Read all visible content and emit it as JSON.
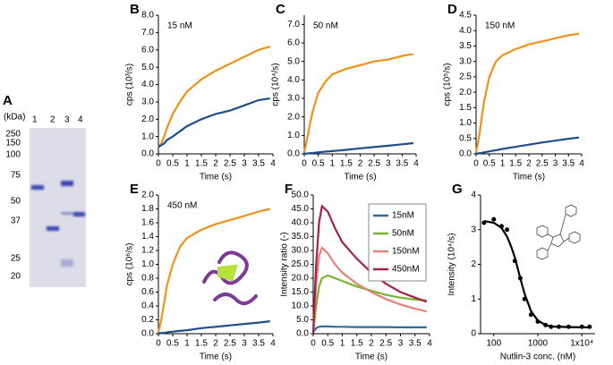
{
  "gel": {
    "panel": "A",
    "unit": "(kDa)",
    "markers": [
      "250",
      "150",
      "100",
      "75",
      "50",
      "37",
      "25",
      "20"
    ],
    "lanes": [
      "1",
      "2",
      "3",
      "4"
    ]
  },
  "chart_data": [
    {
      "type": "line",
      "panel": "B",
      "title": "15 nM",
      "ylabel": "cps (10³/s)",
      "xlabel": "Time (s)",
      "x": [
        0,
        0.1,
        0.2,
        0.3,
        0.5,
        0.75,
        1,
        1.5,
        2,
        2.5,
        3,
        3.5,
        3.9
      ],
      "series": [
        {
          "color": "#f39019",
          "values": [
            0.4,
            0.6,
            1.0,
            1.5,
            2.3,
            3.0,
            3.6,
            4.3,
            4.8,
            5.2,
            5.6,
            6.0,
            6.2
          ]
        },
        {
          "color": "#1f4e8c",
          "values": [
            0.4,
            0.5,
            0.6,
            0.8,
            1.0,
            1.3,
            1.6,
            2.0,
            2.3,
            2.5,
            2.8,
            3.1,
            3.2
          ]
        }
      ],
      "xlim": [
        0,
        4
      ],
      "xticks": [
        0,
        0.5,
        1,
        1.5,
        2,
        2.5,
        3,
        3.5,
        4
      ],
      "ylim": [
        0,
        8
      ],
      "yticks": [
        {
          "value": 0,
          "label": "0.0"
        },
        {
          "value": 1,
          "label": "1.0"
        },
        {
          "value": 2,
          "label": "2.0"
        },
        {
          "value": 3,
          "label": "3.0"
        },
        {
          "value": 4,
          "label": "4.0"
        },
        {
          "value": 5,
          "label": "5.0"
        },
        {
          "value": 6,
          "label": "6.0"
        },
        {
          "value": 7,
          "label": "7.0"
        },
        {
          "value": 8,
          "label": "8.0"
        }
      ]
    },
    {
      "type": "line",
      "panel": "C",
      "title": "50 nM",
      "ylabel": "cps (10⁴/s)",
      "xlabel": "Time (s)",
      "x": [
        0,
        0.1,
        0.2,
        0.3,
        0.5,
        0.75,
        1,
        1.5,
        2,
        2.5,
        3,
        3.5,
        3.9
      ],
      "series": [
        {
          "color": "#f39019",
          "values": [
            0.1,
            0.8,
            1.6,
            2.3,
            3.3,
            3.9,
            4.3,
            4.6,
            4.8,
            5.0,
            5.1,
            5.3,
            5.4
          ]
        },
        {
          "color": "#1f4e8c",
          "values": [
            0,
            0.02,
            0.04,
            0.05,
            0.08,
            0.12,
            0.15,
            0.22,
            0.3,
            0.37,
            0.44,
            0.52,
            0.58
          ]
        }
      ],
      "xlim": [
        0,
        4
      ],
      "xticks": [
        0,
        0.5,
        1,
        1.5,
        2,
        2.5,
        3,
        3.5,
        4
      ],
      "ylim": [
        0,
        7.5
      ],
      "yticks": [
        {
          "value": 0,
          "label": "0.0"
        },
        {
          "value": 1,
          "label": "1.0"
        },
        {
          "value": 2,
          "label": "2.0"
        },
        {
          "value": 3,
          "label": "3.0"
        },
        {
          "value": 4,
          "label": "4.0"
        },
        {
          "value": 5,
          "label": "5.0"
        },
        {
          "value": 6,
          "label": "6.0"
        },
        {
          "value": 7,
          "label": "7.0"
        }
      ]
    },
    {
      "type": "line",
      "panel": "D",
      "title": "150 nM",
      "ylabel": "cps (10⁵/s)",
      "xlabel": "Time (s)",
      "x": [
        0,
        0.1,
        0.2,
        0.3,
        0.5,
        0.75,
        1,
        1.5,
        2,
        2.5,
        3,
        3.5,
        3.9
      ],
      "series": [
        {
          "color": "#f39019",
          "values": [
            0.05,
            0.5,
            1.1,
            1.7,
            2.5,
            3.0,
            3.2,
            3.4,
            3.55,
            3.65,
            3.75,
            3.85,
            3.9
          ]
        },
        {
          "color": "#1f4e8c",
          "values": [
            0,
            0.02,
            0.03,
            0.05,
            0.08,
            0.12,
            0.16,
            0.23,
            0.3,
            0.37,
            0.43,
            0.49,
            0.53
          ]
        }
      ],
      "xlim": [
        0,
        4
      ],
      "xticks": [
        0,
        0.5,
        1,
        1.5,
        2,
        2.5,
        3,
        3.5,
        4
      ],
      "ylim": [
        0,
        4.5
      ],
      "yticks": [
        {
          "value": 0,
          "label": "0.0"
        },
        {
          "value": 0.5,
          "label": "0.5"
        },
        {
          "value": 1,
          "label": "1.0"
        },
        {
          "value": 1.5,
          "label": "1.5"
        },
        {
          "value": 2,
          "label": "2.0"
        },
        {
          "value": 2.5,
          "label": "2.5"
        },
        {
          "value": 3,
          "label": "3.0"
        },
        {
          "value": 3.5,
          "label": "3.5"
        },
        {
          "value": 4,
          "label": "4.0"
        },
        {
          "value": 4.5,
          "label": "4.5"
        }
      ]
    },
    {
      "type": "line",
      "panel": "E",
      "title": "450 nM",
      "ylabel": "cps (10⁶/s)",
      "xlabel": "Time (s)",
      "x": [
        0,
        0.1,
        0.2,
        0.3,
        0.5,
        0.75,
        1,
        1.5,
        2,
        2.5,
        3,
        3.5,
        3.9
      ],
      "series": [
        {
          "color": "#f39019",
          "values": [
            0.02,
            0.2,
            0.45,
            0.7,
            1.0,
            1.25,
            1.38,
            1.5,
            1.58,
            1.64,
            1.7,
            1.76,
            1.8
          ]
        },
        {
          "color": "#1f4e8c",
          "values": [
            0,
            0.01,
            0.01,
            0.02,
            0.03,
            0.04,
            0.05,
            0.08,
            0.1,
            0.12,
            0.14,
            0.16,
            0.18
          ]
        }
      ],
      "xlim": [
        0,
        4
      ],
      "xticks": [
        0,
        0.5,
        1,
        1.5,
        2,
        2.5,
        3,
        3.5,
        4
      ],
      "ylim": [
        0,
        2
      ],
      "yticks": [
        {
          "value": 0,
          "label": "0.0"
        },
        {
          "value": 0.2,
          "label": "0.2"
        },
        {
          "value": 0.4,
          "label": "0.4"
        },
        {
          "value": 0.6,
          "label": "0.6"
        },
        {
          "value": 0.8,
          "label": "0.8"
        },
        {
          "value": 1,
          "label": "1.0"
        },
        {
          "value": 1.2,
          "label": "1.2"
        },
        {
          "value": 1.4,
          "label": "1.4"
        },
        {
          "value": 1.6,
          "label": "1.6"
        },
        {
          "value": 1.8,
          "label": "1.8"
        },
        {
          "value": 2,
          "label": "2.0"
        }
      ]
    },
    {
      "type": "line",
      "panel": "F",
      "ylabel": "Intensity ratio (-)",
      "xlabel": "Time (s)",
      "x": [
        0,
        0.1,
        0.2,
        0.3,
        0.5,
        0.75,
        1,
        1.5,
        2,
        2.5,
        3,
        3.5,
        3.9
      ],
      "series": [
        {
          "name": "15nM",
          "color": "#2e6c9e",
          "values": [
            0.5,
            2.0,
            2.5,
            2.6,
            2.6,
            2.5,
            2.5,
            2.4,
            2.4,
            2.4,
            2.3,
            2.3,
            2.3
          ]
        },
        {
          "name": "50nM",
          "color": "#77b52f",
          "values": [
            0.5,
            10,
            17,
            20,
            21,
            20,
            19,
            17,
            15.5,
            14,
            13,
            12.3,
            12
          ]
        },
        {
          "name": "150nM",
          "color": "#e58373",
          "values": [
            0.5,
            18,
            28,
            31,
            29,
            25,
            22,
            18,
            15,
            12.5,
            10.5,
            9,
            8
          ]
        },
        {
          "name": "450nM",
          "color": "#a51e4a",
          "values": [
            0.5,
            25,
            40,
            46,
            44,
            38,
            33,
            27,
            22,
            18,
            15,
            13,
            11.5
          ]
        }
      ],
      "xlim": [
        0,
        4
      ],
      "xticks": [
        0,
        0.5,
        1,
        1.5,
        2,
        2.5,
        3,
        3.5,
        4
      ],
      "ylim": [
        0,
        50
      ],
      "yticks": [
        {
          "value": 0,
          "label": "0.0"
        },
        {
          "value": 5,
          "label": "5.0"
        },
        {
          "value": 10,
          "label": "10.0"
        },
        {
          "value": 15,
          "label": "15.0"
        },
        {
          "value": 20,
          "label": "20.0"
        },
        {
          "value": 25,
          "label": "25.0"
        },
        {
          "value": 30,
          "label": "30.0"
        },
        {
          "value": 35,
          "label": "35.0"
        },
        {
          "value": 40,
          "label": "40.0"
        },
        {
          "value": 45,
          "label": "45.0"
        },
        {
          "value": 50,
          "label": "50.0"
        }
      ],
      "legend": "right"
    },
    {
      "type": "scatter",
      "panel": "G",
      "ylabel": "Intensity (10⁴/s)",
      "xlabel": "Nutlin-3 conc. (nM)",
      "xscale": "log",
      "series": [
        {
          "color": "#000000",
          "x": [
            60,
            100,
            150,
            200,
            300,
            400,
            500,
            700,
            1000,
            1500,
            2000,
            3000,
            5000,
            10000,
            15000
          ],
          "values": [
            3.2,
            3.3,
            3.1,
            3.0,
            2.1,
            1.6,
            1.0,
            0.55,
            0.35,
            0.25,
            0.2,
            0.2,
            0.2,
            0.2,
            0.2
          ]
        },
        {
          "type": "line",
          "color": "#000000",
          "x": [
            60,
            100,
            150,
            200,
            250,
            300,
            400,
            500,
            700,
            1000,
            1500,
            2000,
            5000,
            15000
          ],
          "values": [
            3.25,
            3.2,
            3.05,
            2.8,
            2.5,
            2.2,
            1.6,
            1.15,
            0.65,
            0.38,
            0.25,
            0.21,
            0.19,
            0.18
          ]
        }
      ],
      "xlim": [
        50,
        20000
      ],
      "xticks": [
        100,
        1000,
        {
          "value": 10000,
          "label": "1x10⁴"
        }
      ],
      "ylim": [
        0,
        4
      ],
      "yticks": [
        0,
        1,
        2,
        3,
        4
      ]
    }
  ]
}
